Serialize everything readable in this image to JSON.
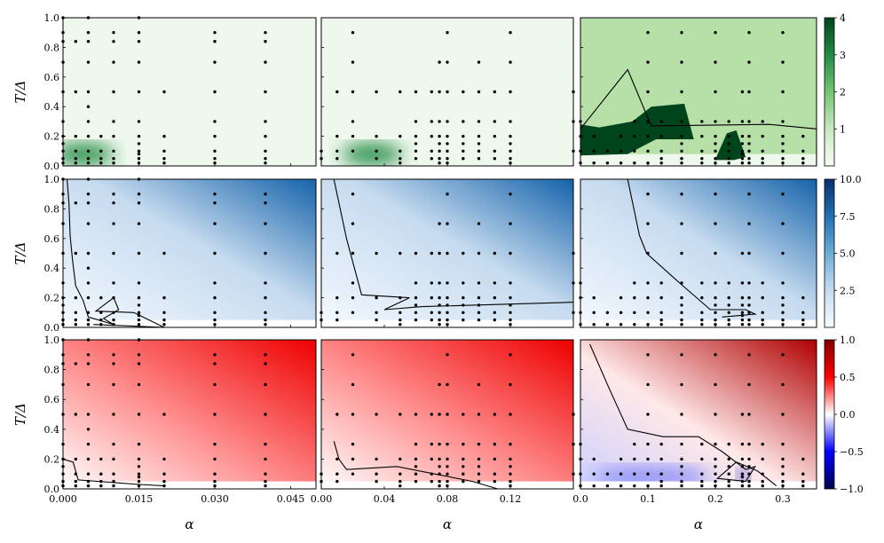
{
  "chart_data": {
    "type": "heatmap",
    "layout": "3x3 grid of panels with per-row colorbars",
    "xlabel": "α",
    "ylabel": "T/Δ",
    "ylim": [
      0.0,
      1.0
    ],
    "y_ticks": [
      "0.0",
      "0.2",
      "0.4",
      "0.6",
      "0.8",
      "1.0"
    ],
    "columns": [
      {
        "xlim": [
          0.0,
          0.05
        ],
        "x_ticks": [
          0.0,
          0.015,
          0.03,
          0.045
        ],
        "x_tick_labels": [
          "0.000",
          "0.015",
          "0.030",
          "0.045"
        ]
      },
      {
        "xlim": [
          0.0,
          0.16
        ],
        "x_ticks": [
          0.0,
          0.04,
          0.08,
          0.12
        ],
        "x_tick_labels": [
          "0.00",
          "0.04",
          "0.08",
          "0.12"
        ]
      },
      {
        "xlim": [
          0.0,
          0.35
        ],
        "x_ticks": [
          0.0,
          0.1,
          0.2,
          0.3
        ],
        "x_tick_labels": [
          "0.0",
          "0.1",
          "0.2",
          "0.3"
        ]
      }
    ],
    "rows": [
      {
        "colormap": "Greens",
        "color_stops": [
          "#f7fcf5",
          "#c7e9c0",
          "#74c476",
          "#238b45",
          "#00441b"
        ],
        "colorbar_range": [
          0,
          4
        ],
        "colorbar_ticks": [
          "1",
          "2",
          "3",
          "4"
        ],
        "colorbar_tick_values": [
          1,
          2,
          3,
          4
        ]
      },
      {
        "colormap": "Blues",
        "color_stops": [
          "#f7fbff",
          "#c6dbef",
          "#6baed6",
          "#2171b5",
          "#08306b"
        ],
        "colorbar_range": [
          0,
          10
        ],
        "colorbar_ticks": [
          "2.5",
          "5.0",
          "7.5",
          "10.0"
        ],
        "colorbar_tick_values": [
          2.5,
          5.0,
          7.5,
          10.0
        ]
      },
      {
        "colormap": "seismic",
        "color_stops": [
          "#00004c",
          "#0000ff",
          "#ffffff",
          "#ff0000",
          "#800000"
        ],
        "colorbar_range": [
          -1,
          1
        ],
        "colorbar_ticks": [
          "−1.0",
          "−0.5",
          "0.0",
          "0.5",
          "1.0"
        ],
        "colorbar_tick_values": [
          -1.0,
          -0.5,
          0.0,
          0.5,
          1.0
        ]
      }
    ],
    "sample_points": [
      {
        "x": [
          0.0,
          0.0025,
          0.005,
          0.0075,
          0.01,
          0.015,
          0.02,
          0.03,
          0.04
        ],
        "y_sets": [
          [
            0.02,
            0.05,
            0.1,
            0.15,
            0.2,
            0.3,
            0.5,
            0.7,
            0.84,
            0.9,
            1.0
          ],
          [
            0.02,
            0.05,
            0.1,
            0.2,
            0.5,
            0.84
          ],
          [
            0.02,
            0.05,
            0.1,
            0.2,
            0.3,
            0.4,
            0.5,
            0.7,
            0.84,
            0.9,
            1.0
          ],
          [
            0.02,
            0.05,
            0.1,
            0.2
          ],
          [
            0.02,
            0.05,
            0.1,
            0.2,
            0.3,
            0.5,
            0.7,
            0.84,
            0.9
          ],
          [
            0.02,
            0.05,
            0.08,
            0.1,
            0.15,
            0.2,
            0.3,
            0.5,
            0.7,
            0.84,
            0.9,
            1.0
          ],
          [
            0.02,
            0.05,
            0.1,
            0.2,
            0.5
          ],
          [
            0.02,
            0.05,
            0.1,
            0.2,
            0.3,
            0.5,
            0.7,
            0.84,
            0.9
          ],
          [
            0.02,
            0.05,
            0.1,
            0.2,
            0.3,
            0.5,
            0.7,
            0.84,
            0.9
          ]
        ]
      },
      {
        "x": [
          0.0,
          0.01,
          0.02,
          0.035,
          0.05,
          0.06,
          0.07,
          0.075,
          0.08,
          0.09,
          0.1,
          0.11,
          0.12,
          0.16
        ],
        "y_sets": [
          [
            0.05,
            0.1
          ],
          [
            0.05,
            0.1,
            0.2,
            0.5
          ],
          [
            0.1,
            0.2,
            0.3,
            0.5,
            0.7,
            0.9
          ],
          [
            0.05,
            0.1,
            0.2,
            0.5
          ],
          [
            0.02,
            0.05,
            0.1,
            0.2,
            0.5
          ],
          [
            0.05,
            0.1,
            0.15,
            0.2,
            0.3,
            0.5
          ],
          [
            0.05,
            0.1,
            0.2,
            0.3,
            0.5
          ],
          [
            0.02,
            0.05,
            0.1,
            0.15,
            0.2,
            0.3,
            0.5,
            0.7
          ],
          [
            0.02,
            0.05,
            0.1,
            0.15,
            0.2,
            0.3,
            0.5,
            0.7,
            0.9
          ],
          [
            0.05,
            0.1,
            0.15,
            0.2,
            0.3,
            0.5
          ],
          [
            0.05,
            0.1,
            0.15,
            0.2,
            0.3,
            0.5,
            0.7
          ],
          [
            0.05,
            0.1,
            0.2,
            0.3,
            0.5
          ],
          [
            0.02,
            0.05,
            0.1,
            0.15,
            0.2,
            0.3,
            0.5,
            0.7,
            0.9
          ],
          [
            0.1,
            0.3,
            0.5
          ]
        ]
      },
      {
        "x": [
          0.0,
          0.02,
          0.04,
          0.06,
          0.08,
          0.1,
          0.12,
          0.15,
          0.18,
          0.2,
          0.22,
          0.24,
          0.25,
          0.27,
          0.3,
          0.33
        ],
        "y_sets": [
          [
            0.02,
            0.1,
            0.2,
            0.3
          ],
          [
            0.02,
            0.1,
            0.2
          ],
          [
            0.02,
            0.1
          ],
          [
            0.02,
            0.1,
            0.2
          ],
          [
            0.02,
            0.1,
            0.2,
            0.3
          ],
          [
            0.02,
            0.1,
            0.2,
            0.3,
            0.5,
            0.7,
            0.9
          ],
          [
            0.02,
            0.05,
            0.1,
            0.2,
            0.3
          ],
          [
            0.02,
            0.05,
            0.1,
            0.15,
            0.2,
            0.3,
            0.5,
            0.7,
            0.9
          ],
          [
            0.02,
            0.05,
            0.1,
            0.2,
            0.3
          ],
          [
            0.02,
            0.05,
            0.1,
            0.15,
            0.2,
            0.3,
            0.5,
            0.7,
            0.9
          ],
          [
            0.02,
            0.05,
            0.1,
            0.15,
            0.2,
            0.3
          ],
          [
            0.02,
            0.05,
            0.08,
            0.1,
            0.15,
            0.2,
            0.3,
            0.5
          ],
          [
            0.02,
            0.05,
            0.1,
            0.15,
            0.2,
            0.3,
            0.5,
            0.7,
            0.9
          ],
          [
            0.02,
            0.05,
            0.1,
            0.2,
            0.3
          ],
          [
            0.02,
            0.05,
            0.1,
            0.15,
            0.2,
            0.3,
            0.5,
            0.7,
            0.9
          ],
          [
            0.02,
            0.05,
            0.1,
            0.2
          ]
        ]
      }
    ],
    "contour_lines": [
      [
        null,
        null,
        [
          [
            0.0,
            0.25
          ],
          [
            0.2,
            0.65
          ],
          [
            0.3,
            0.27
          ],
          [
            0.8,
            0.28
          ],
          [
            1.0,
            0.25
          ],
          [
            1.0,
            0.0
          ]
        ]
      ],
      [
        [
          [
            0.016,
            1.0
          ],
          [
            0.024,
            0.83
          ],
          [
            0.028,
            0.62
          ],
          [
            0.038,
            0.45
          ],
          [
            0.05,
            0.28
          ],
          [
            0.08,
            0.18
          ],
          [
            0.1,
            0.07
          ],
          [
            0.2,
            0.02
          ],
          [
            0.16,
            0.06
          ],
          [
            0.22,
            0.12
          ],
          [
            0.2,
            0.2
          ],
          [
            0.13,
            0.11
          ],
          [
            0.28,
            0.1
          ],
          [
            0.4,
            0.0
          ],
          [
            0.12,
            0.02
          ]
        ],
        [
          [
            0.05,
            1.0
          ],
          [
            0.1,
            0.6
          ],
          [
            0.16,
            0.22
          ],
          [
            0.35,
            0.2
          ],
          [
            0.25,
            0.12
          ],
          [
            0.4,
            0.14
          ],
          [
            1.0,
            0.17
          ]
        ],
        [
          [
            0.2,
            1.0
          ],
          [
            0.25,
            0.62
          ],
          [
            0.28,
            0.5
          ],
          [
            0.42,
            0.3
          ],
          [
            0.55,
            0.12
          ],
          [
            0.7,
            0.12
          ],
          [
            0.74,
            0.09
          ],
          [
            0.6,
            0.07
          ]
        ]
      ],
      [
        [
          [
            0.0,
            0.2
          ],
          [
            0.04,
            0.18
          ],
          [
            0.06,
            0.06
          ],
          [
            0.3,
            0.03
          ],
          [
            0.4,
            0.02
          ]
        ],
        [
          [
            0.05,
            0.32
          ],
          [
            0.07,
            0.2
          ],
          [
            0.1,
            0.13
          ],
          [
            0.3,
            0.15
          ],
          [
            0.6,
            0.05
          ],
          [
            0.7,
            0.0
          ]
        ],
        [
          [
            0.04,
            0.97
          ],
          [
            0.12,
            0.68
          ],
          [
            0.2,
            0.4
          ],
          [
            0.35,
            0.35
          ],
          [
            0.5,
            0.35
          ],
          [
            0.6,
            0.25
          ],
          [
            0.7,
            0.13
          ],
          [
            0.74,
            0.15
          ],
          [
            0.7,
            0.05
          ],
          [
            0.58,
            0.07
          ],
          [
            0.66,
            0.18
          ],
          [
            0.75,
            0.12
          ],
          [
            0.83,
            0.02
          ]
        ]
      ]
    ]
  }
}
